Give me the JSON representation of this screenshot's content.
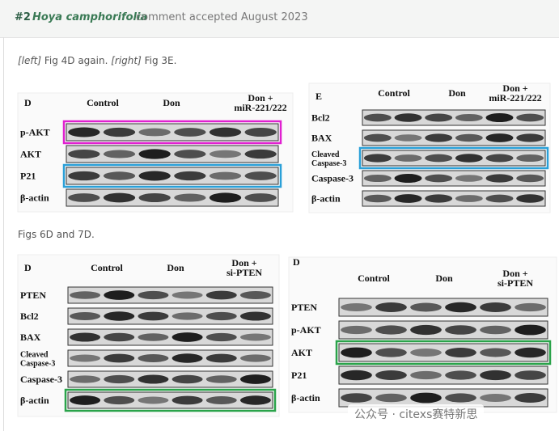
{
  "header": {
    "number": "#2",
    "species": "Hoya camphorifolia",
    "status": "comment accepted August 2023"
  },
  "caption1": {
    "left_tag": "[left]",
    "left_text": "Fig 4D again.",
    "right_tag": "[right]",
    "right_text": "Fig 3E."
  },
  "caption2": "Figs 6D and 7D.",
  "panels": [
    {
      "letter": "D",
      "columns": [
        [
          "Control"
        ],
        [
          "Don"
        ],
        [
          "Don +",
          "miR-221/222"
        ]
      ],
      "rows": [
        [
          "p-AKT"
        ],
        [
          "AKT"
        ],
        [
          "P21"
        ],
        [
          "β-actin"
        ]
      ]
    },
    {
      "letter": "E",
      "columns": [
        [
          "Control"
        ],
        [
          "Don"
        ],
        [
          "Don +",
          "miR-221/222"
        ]
      ],
      "rows": [
        [
          "Bcl2"
        ],
        [
          "BAX"
        ],
        [
          "Cleaved",
          "Caspase-3"
        ],
        [
          "Caspase-3"
        ],
        [
          "β-actin"
        ]
      ]
    },
    {
      "letter": "D",
      "columns": [
        [
          "Control"
        ],
        [
          "Don"
        ],
        [
          "Don +",
          "si-PTEN"
        ]
      ],
      "rows": [
        [
          "PTEN"
        ],
        [
          "Bcl2"
        ],
        [
          "BAX"
        ],
        [
          "Cleaved",
          "Caspase-3"
        ],
        [
          "Caspase-3"
        ],
        [
          "β-actin"
        ]
      ]
    },
    {
      "letter": "D",
      "columns": [
        [
          "Control"
        ],
        [
          "Don"
        ],
        [
          "Don +",
          "si-PTEN"
        ]
      ],
      "rows": [
        [
          "PTEN"
        ],
        [
          "p-AKT"
        ],
        [
          "AKT"
        ],
        [
          "P21"
        ],
        [
          "β-actin"
        ]
      ]
    }
  ],
  "watermark": "公众号 · citexs赛特新思"
}
